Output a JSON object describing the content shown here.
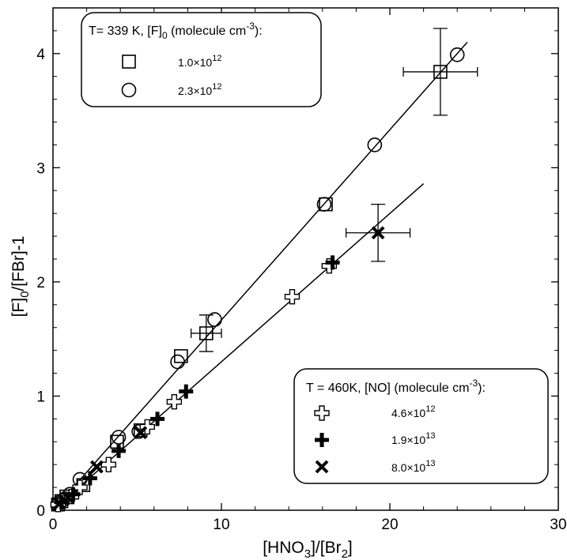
{
  "chart_data": {
    "type": "scatter",
    "xlabel": {
      "base": "[HNO",
      "sub1": "3",
      "mid": "]/[Br",
      "sub2": "2",
      "end": "]"
    },
    "ylabel": {
      "base": "[F]",
      "sub1": "0",
      "end": "/[FBr]-1"
    },
    "xlim": [
      0,
      30
    ],
    "ylim": [
      0,
      4.4
    ],
    "xticks": [
      "0",
      "10",
      "20",
      "30"
    ],
    "yticks": [
      "0",
      "1",
      "2",
      "3",
      "4"
    ],
    "legends": [
      {
        "title": {
          "pre": "T= 339 K, [F]",
          "sub": "0",
          "mid": " (molecule cm",
          "sup": "-3",
          "post": "):"
        },
        "entries": [
          {
            "marker": "square",
            "mant": "1.0×10",
            "exp": "12"
          },
          {
            "marker": "circle",
            "mant": "2.3×10",
            "exp": "12"
          }
        ]
      },
      {
        "title": {
          "pre": "T = 460K, [NO] (molecule cm",
          "sup": "-3",
          "post": "):"
        },
        "entries": [
          {
            "marker": "plus-open",
            "mant": "4.6×10",
            "exp": "12"
          },
          {
            "marker": "plus-filled",
            "mant": "1.9×10",
            "exp": "13"
          },
          {
            "marker": "cross",
            "mant": "8.0×10",
            "exp": "13"
          }
        ]
      }
    ],
    "series": [
      {
        "marker": "square",
        "points": [
          [
            0.3,
            0.05
          ],
          [
            0.5,
            0.08
          ],
          [
            0.8,
            0.12
          ],
          [
            1.8,
            0.22
          ],
          [
            3.8,
            0.6
          ],
          [
            5.2,
            0.7
          ],
          [
            7.6,
            1.35
          ],
          [
            9.1,
            1.55
          ],
          [
            16.2,
            2.68
          ],
          [
            23.0,
            3.84
          ]
        ],
        "errorbars": [
          {
            "x": 23.0,
            "y": 3.84,
            "xerr": 2.2,
            "yerr": 0.38
          },
          {
            "x": 9.1,
            "y": 1.55,
            "xerr": 0.9,
            "yerr": 0.16
          }
        ]
      },
      {
        "marker": "circle",
        "points": [
          [
            0.4,
            0.07
          ],
          [
            0.7,
            0.1
          ],
          [
            1.0,
            0.14
          ],
          [
            1.6,
            0.27
          ],
          [
            3.9,
            0.64
          ],
          [
            5.1,
            0.69
          ],
          [
            7.4,
            1.3
          ],
          [
            9.6,
            1.67
          ],
          [
            16.1,
            2.68
          ],
          [
            19.1,
            3.2
          ],
          [
            24.0,
            3.99
          ]
        ]
      },
      {
        "marker": "plus-open",
        "points": [
          [
            0.3,
            0.05
          ],
          [
            0.6,
            0.08
          ],
          [
            1.1,
            0.12
          ],
          [
            1.6,
            0.2
          ],
          [
            3.3,
            0.4
          ],
          [
            5.6,
            0.73
          ],
          [
            7.2,
            0.95
          ],
          [
            14.2,
            1.87
          ],
          [
            16.4,
            2.14
          ]
        ]
      },
      {
        "marker": "plus-filled",
        "points": [
          [
            0.5,
            0.07
          ],
          [
            1.2,
            0.14
          ],
          [
            2.2,
            0.28
          ],
          [
            3.9,
            0.52
          ],
          [
            6.2,
            0.8
          ],
          [
            7.9,
            1.04
          ],
          [
            16.6,
            2.17
          ]
        ]
      },
      {
        "marker": "cross",
        "points": [
          [
            0.4,
            0.06
          ],
          [
            0.9,
            0.11
          ],
          [
            2.6,
            0.38
          ],
          [
            5.2,
            0.68
          ],
          [
            19.3,
            2.43
          ]
        ],
        "errorbars": [
          {
            "x": 19.3,
            "y": 2.43,
            "xerr": 1.9,
            "yerr": 0.25
          }
        ]
      }
    ],
    "fits": [
      {
        "x0": 0,
        "y0": 0.0,
        "x1": 24.6,
        "y1": 4.1
      },
      {
        "x0": 0,
        "y0": 0.0,
        "x1": 22.0,
        "y1": 2.86
      }
    ]
  }
}
